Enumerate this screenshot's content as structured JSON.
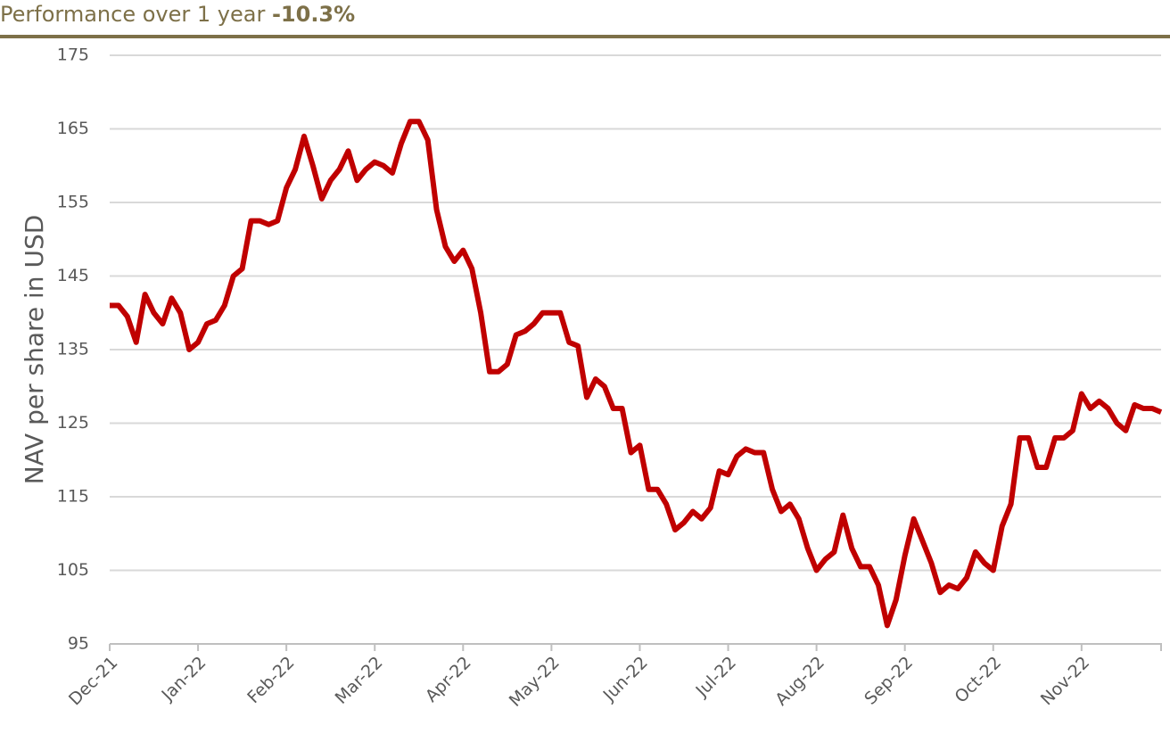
{
  "chart_data": {
    "type": "line",
    "title": "Performance over 1 year",
    "title_value": "-10.3%",
    "y_label": "NAV per share in USD",
    "categories": [
      "Dec-21",
      null,
      null,
      null,
      null,
      null,
      null,
      null,
      null,
      null,
      "Jan-22",
      null,
      null,
      null,
      null,
      null,
      null,
      null,
      null,
      null,
      "Feb-22",
      null,
      null,
      null,
      null,
      null,
      null,
      null,
      null,
      null,
      "Mar-22",
      null,
      null,
      null,
      null,
      null,
      null,
      null,
      null,
      null,
      "Apr-22",
      null,
      null,
      null,
      null,
      null,
      null,
      null,
      null,
      null,
      "May-22",
      null,
      null,
      null,
      null,
      null,
      null,
      null,
      null,
      null,
      "Jun-22",
      null,
      null,
      null,
      null,
      null,
      null,
      null,
      null,
      null,
      "Jul-22",
      null,
      null,
      null,
      null,
      null,
      null,
      null,
      null,
      null,
      "Aug-22",
      null,
      null,
      null,
      null,
      null,
      null,
      null,
      null,
      null,
      "Sep-22",
      null,
      null,
      null,
      null,
      null,
      null,
      null,
      null,
      null,
      "Oct-22",
      null,
      null,
      null,
      null,
      null,
      null,
      null,
      null,
      null,
      "Nov-22",
      null,
      null,
      null,
      null,
      null,
      null,
      null,
      null,
      null
    ],
    "series": [
      {
        "name": "NAV per share",
        "color": "#c00000",
        "values": [
          141,
          141,
          139.5,
          136,
          142.5,
          140,
          138.5,
          142,
          140,
          135,
          136,
          138.5,
          139,
          141,
          145,
          146,
          152.5,
          152.5,
          152,
          152.5,
          157,
          159.5,
          164,
          160,
          155.5,
          158,
          159.5,
          162,
          158,
          159.5,
          160.5,
          160,
          159,
          163,
          166,
          166,
          163.5,
          154,
          149,
          147,
          148.5,
          146,
          140,
          132,
          132,
          133,
          137,
          137.5,
          138.5,
          140,
          140,
          140,
          136,
          135.5,
          128.5,
          131,
          130,
          127,
          127,
          121,
          122,
          116,
          116,
          114,
          110.5,
          111.5,
          113,
          112,
          113.5,
          118.5,
          118,
          120.5,
          121.5,
          121,
          121,
          116,
          113,
          114,
          112,
          108,
          105,
          106.5,
          107.5,
          112.5,
          108,
          105.5,
          105.5,
          103,
          97.5,
          101,
          107,
          112,
          109,
          106,
          102,
          103,
          102.5,
          104,
          107.5,
          106,
          105,
          111,
          114,
          123,
          123,
          119,
          119,
          123,
          123,
          124,
          129,
          127,
          128,
          127,
          125,
          124,
          127.5,
          127,
          127,
          126.5
        ]
      }
    ],
    "ylim": [
      95,
      175
    ],
    "yticks": [
      95,
      105,
      115,
      125,
      135,
      145,
      155,
      165,
      175
    ],
    "grid": true,
    "title_color": "#7d7048"
  }
}
